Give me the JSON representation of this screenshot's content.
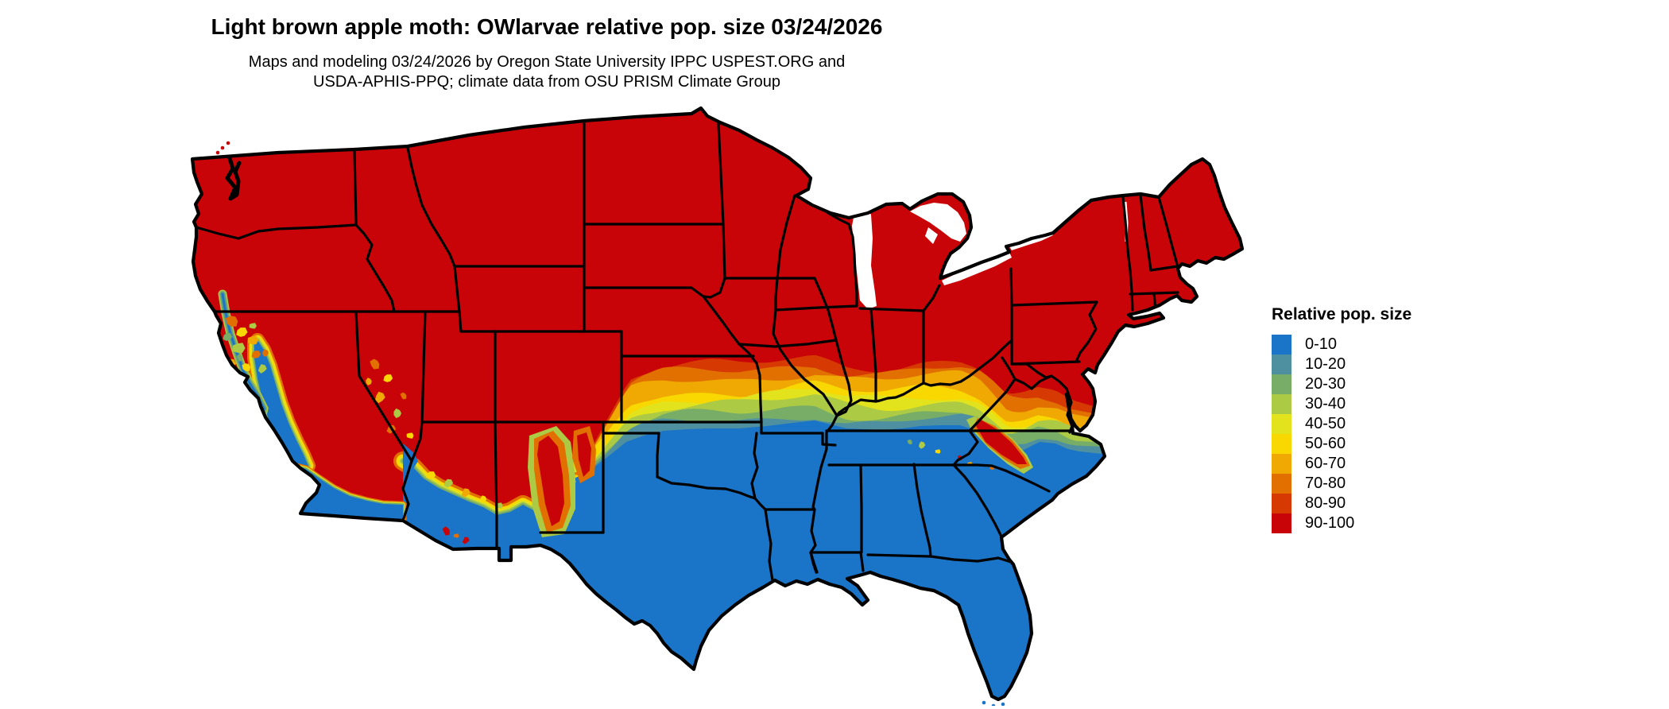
{
  "header": {
    "title": "Light brown apple moth: OWlarvae relative pop. size 03/24/2026",
    "subtitle_line1": "Maps and modeling 03/24/2026 by Oregon State University IPPC USPEST.ORG and",
    "subtitle_line2": "USDA-APHIS-PPQ; climate data from OSU PRISM Climate Group"
  },
  "legend": {
    "title": "Relative pop. size",
    "items": [
      {
        "label": "0-10",
        "color": "#1a74c8"
      },
      {
        "label": "10-20",
        "color": "#4e90a0"
      },
      {
        "label": "20-30",
        "color": "#78ad68"
      },
      {
        "label": "30-40",
        "color": "#adca44"
      },
      {
        "label": "40-50",
        "color": "#e2e31d"
      },
      {
        "label": "50-60",
        "color": "#f8d800"
      },
      {
        "label": "60-70",
        "color": "#efa902"
      },
      {
        "label": "70-80",
        "color": "#e17000"
      },
      {
        "label": "80-90",
        "color": "#d63a02"
      },
      {
        "label": "90-100",
        "color": "#c90408"
      }
    ]
  },
  "map": {
    "border_color": "#000000",
    "water_color": "#ffffff"
  }
}
